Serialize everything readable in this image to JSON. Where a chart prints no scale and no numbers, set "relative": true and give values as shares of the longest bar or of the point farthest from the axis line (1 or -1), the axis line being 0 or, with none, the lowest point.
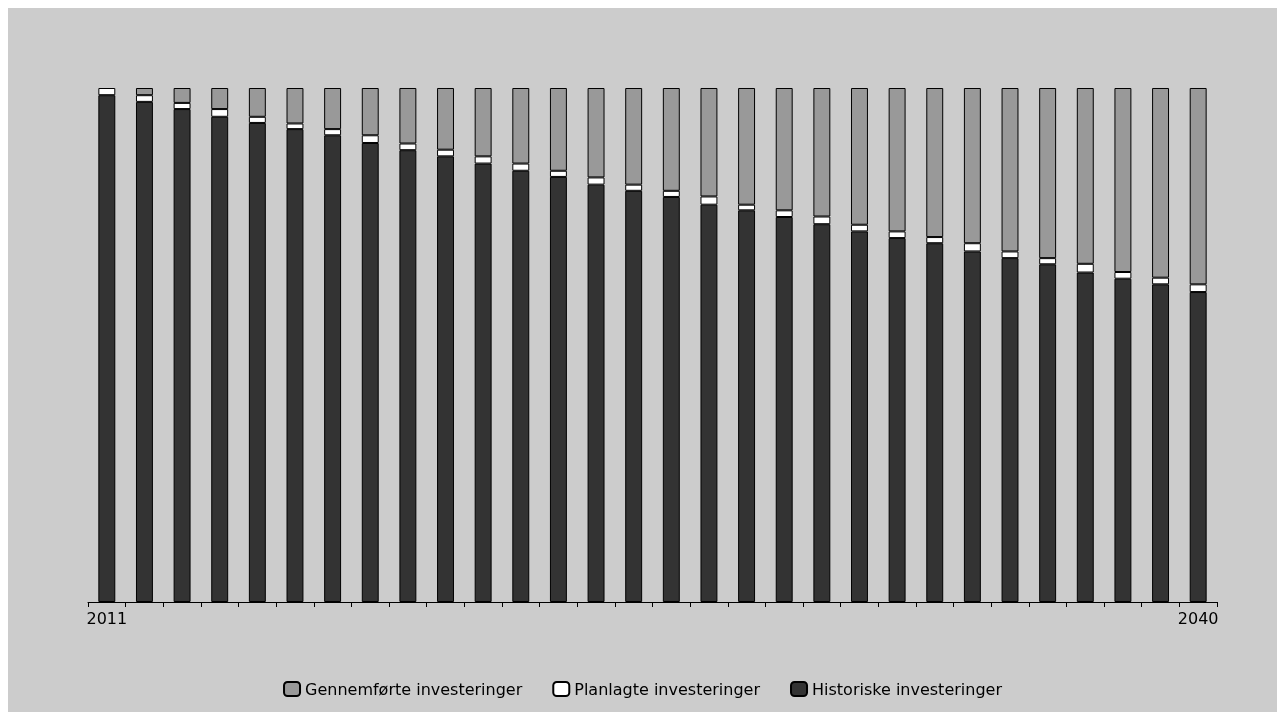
{
  "chart_data": {
    "type": "bar",
    "stacked": true,
    "relative": true,
    "grid": false,
    "legend": "bottom",
    "categories": [
      "2011",
      null,
      null,
      null,
      null,
      null,
      null,
      null,
      null,
      null,
      null,
      null,
      null,
      null,
      null,
      null,
      null,
      null,
      null,
      null,
      null,
      null,
      null,
      null,
      null,
      null,
      null,
      null,
      null,
      "2040"
    ],
    "series": [
      {
        "name": "Historiske investeringer",
        "color": "#333333",
        "values": [
          0.986,
          0.973,
          0.959,
          0.944,
          0.932,
          0.92,
          0.908,
          0.893,
          0.879,
          0.867,
          0.853,
          0.839,
          0.827,
          0.812,
          0.8,
          0.788,
          0.773,
          0.762,
          0.749,
          0.735,
          0.721,
          0.708,
          0.698,
          0.682,
          0.669,
          0.657,
          0.641,
          0.629,
          0.618,
          0.603
        ]
      },
      {
        "name": "Planlagte investeringer",
        "color": "#ffffff",
        "values": [
          0.014,
          0.013,
          0.012,
          0.015,
          0.012,
          0.011,
          0.012,
          0.015,
          0.013,
          0.013,
          0.014,
          0.014,
          0.012,
          0.014,
          0.012,
          0.012,
          0.016,
          0.011,
          0.013,
          0.015,
          0.013,
          0.013,
          0.012,
          0.016,
          0.013,
          0.012,
          0.017,
          0.013,
          0.013,
          0.015
        ]
      },
      {
        "name": "Gennemførte investeringer",
        "color": "#999999",
        "values": [
          0,
          0.014,
          0.029,
          0.041,
          0.056,
          0.069,
          0.08,
          0.092,
          0.108,
          0.12,
          0.133,
          0.147,
          0.161,
          0.174,
          0.188,
          0.2,
          0.211,
          0.227,
          0.238,
          0.25,
          0.266,
          0.279,
          0.29,
          0.302,
          0.318,
          0.331,
          0.342,
          0.358,
          0.369,
          0.382
        ]
      }
    ]
  }
}
